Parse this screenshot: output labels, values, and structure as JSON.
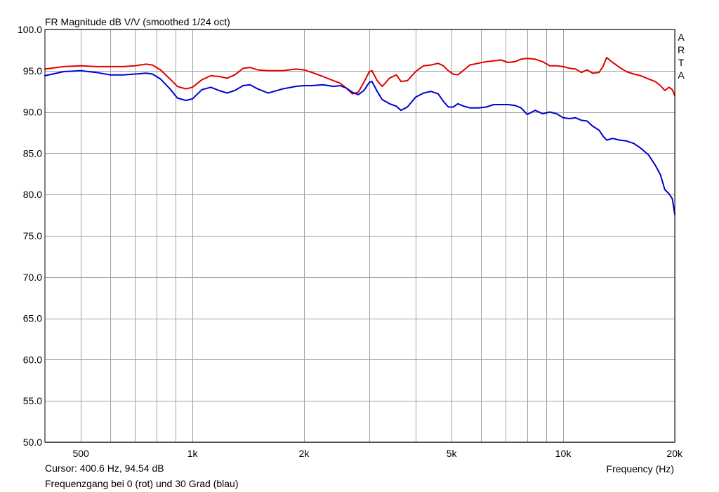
{
  "chart_data": {
    "type": "line",
    "title": "FR Magnitude dB V/V (smoothed 1/24 oct)",
    "xlabel": "Frequency (Hz)",
    "ylabel": "",
    "x_scale": "log",
    "xlim": [
      400,
      20000
    ],
    "ylim": [
      50,
      100
    ],
    "grid": true,
    "watermark": "ARTA",
    "y_ticks": [
      50,
      55,
      60,
      65,
      70,
      75,
      80,
      85,
      90,
      95,
      100
    ],
    "y_tick_labels": [
      "50.0",
      "55.0",
      "60.0",
      "65.0",
      "70.0",
      "75.0",
      "80.0",
      "85.0",
      "90.0",
      "95.0",
      "100.0"
    ],
    "x_gridlines": [
      500,
      600,
      700,
      800,
      900,
      1000,
      2000,
      3000,
      4000,
      5000,
      6000,
      7000,
      8000,
      9000,
      10000,
      20000
    ],
    "x_tick_labels": [
      {
        "value": 500,
        "label": "500"
      },
      {
        "value": 1000,
        "label": "1k"
      },
      {
        "value": 2000,
        "label": "2k"
      },
      {
        "value": 5000,
        "label": "5k"
      },
      {
        "value": 10000,
        "label": "10k"
      },
      {
        "value": 20000,
        "label": "20k"
      }
    ],
    "series": [
      {
        "color": "#e00000",
        "x": [
          400,
          450,
          500,
          550,
          600,
          650,
          700,
          750,
          780,
          820,
          870,
          910,
          960,
          1000,
          1060,
          1120,
          1180,
          1240,
          1300,
          1370,
          1430,
          1500,
          1600,
          1750,
          1900,
          2000,
          2100,
          2250,
          2400,
          2500,
          2600,
          2700,
          2800,
          2900,
          3000,
          3050,
          3150,
          3250,
          3400,
          3550,
          3650,
          3800,
          4000,
          4200,
          4400,
          4600,
          4750,
          4900,
          5050,
          5200,
          5400,
          5600,
          5900,
          6200,
          6500,
          6800,
          7100,
          7400,
          7700,
          8000,
          8400,
          8800,
          9200,
          9600,
          10000,
          10400,
          10800,
          11200,
          11600,
          12000,
          12500,
          12800,
          13100,
          13600,
          14200,
          14800,
          15500,
          16200,
          17000,
          17700,
          18300,
          18800,
          19300,
          19700,
          20000
        ],
        "y": [
          95.2,
          95.5,
          95.6,
          95.5,
          95.5,
          95.5,
          95.6,
          95.8,
          95.7,
          95.1,
          94.0,
          93.1,
          92.8,
          93.0,
          93.9,
          94.4,
          94.3,
          94.1,
          94.5,
          95.3,
          95.4,
          95.1,
          95.0,
          95.0,
          95.2,
          95.1,
          94.8,
          94.3,
          93.8,
          93.5,
          92.9,
          92.2,
          92.4,
          93.6,
          94.9,
          95.0,
          93.8,
          93.1,
          94.1,
          94.5,
          93.7,
          93.8,
          94.9,
          95.6,
          95.7,
          95.9,
          95.6,
          95.0,
          94.6,
          94.5,
          95.1,
          95.7,
          95.9,
          96.1,
          96.2,
          96.3,
          96.0,
          96.1,
          96.4,
          96.5,
          96.4,
          96.1,
          95.6,
          95.6,
          95.5,
          95.3,
          95.2,
          94.8,
          95.1,
          94.7,
          94.8,
          95.5,
          96.6,
          96.0,
          95.4,
          94.9,
          94.6,
          94.4,
          94.0,
          93.7,
          93.2,
          92.6,
          93.0,
          92.7,
          92.0
        ]
      },
      {
        "color": "#0000d0",
        "x": [
          400,
          450,
          500,
          550,
          600,
          650,
          700,
          750,
          780,
          820,
          870,
          910,
          960,
          1000,
          1060,
          1120,
          1180,
          1240,
          1300,
          1370,
          1430,
          1500,
          1600,
          1750,
          1900,
          2000,
          2100,
          2250,
          2400,
          2500,
          2600,
          2700,
          2800,
          2900,
          3000,
          3050,
          3150,
          3250,
          3400,
          3550,
          3650,
          3800,
          4000,
          4200,
          4400,
          4600,
          4750,
          4900,
          5050,
          5200,
          5400,
          5600,
          5900,
          6200,
          6500,
          6800,
          7100,
          7400,
          7700,
          8000,
          8400,
          8800,
          9200,
          9600,
          10000,
          10400,
          10800,
          11200,
          11600,
          12000,
          12500,
          12800,
          13100,
          13600,
          14200,
          14800,
          15500,
          16200,
          17000,
          17700,
          18300,
          18800,
          19300,
          19700,
          20000
        ],
        "y": [
          94.4,
          94.9,
          95.0,
          94.8,
          94.5,
          94.5,
          94.6,
          94.7,
          94.6,
          94.0,
          92.8,
          91.7,
          91.4,
          91.6,
          92.7,
          93.0,
          92.6,
          92.3,
          92.6,
          93.2,
          93.3,
          92.8,
          92.3,
          92.8,
          93.1,
          93.2,
          93.2,
          93.3,
          93.1,
          93.2,
          92.9,
          92.4,
          92.1,
          92.6,
          93.6,
          93.7,
          92.5,
          91.5,
          91.0,
          90.7,
          90.2,
          90.6,
          91.8,
          92.3,
          92.5,
          92.2,
          91.3,
          90.6,
          90.6,
          91.0,
          90.7,
          90.5,
          90.5,
          90.6,
          90.9,
          90.9,
          90.9,
          90.8,
          90.5,
          89.7,
          90.2,
          89.8,
          90.0,
          89.8,
          89.3,
          89.2,
          89.3,
          89.0,
          88.9,
          88.3,
          87.8,
          87.1,
          86.6,
          86.8,
          86.6,
          86.5,
          86.2,
          85.6,
          84.8,
          83.6,
          82.4,
          80.6,
          80.1,
          79.5,
          77.6
        ]
      }
    ]
  },
  "footer": {
    "cursor": "Cursor: 400.6 Hz, 94.54 dB",
    "caption": "Frequenzgang bei 0 (rot) und 30 Grad (blau)"
  }
}
